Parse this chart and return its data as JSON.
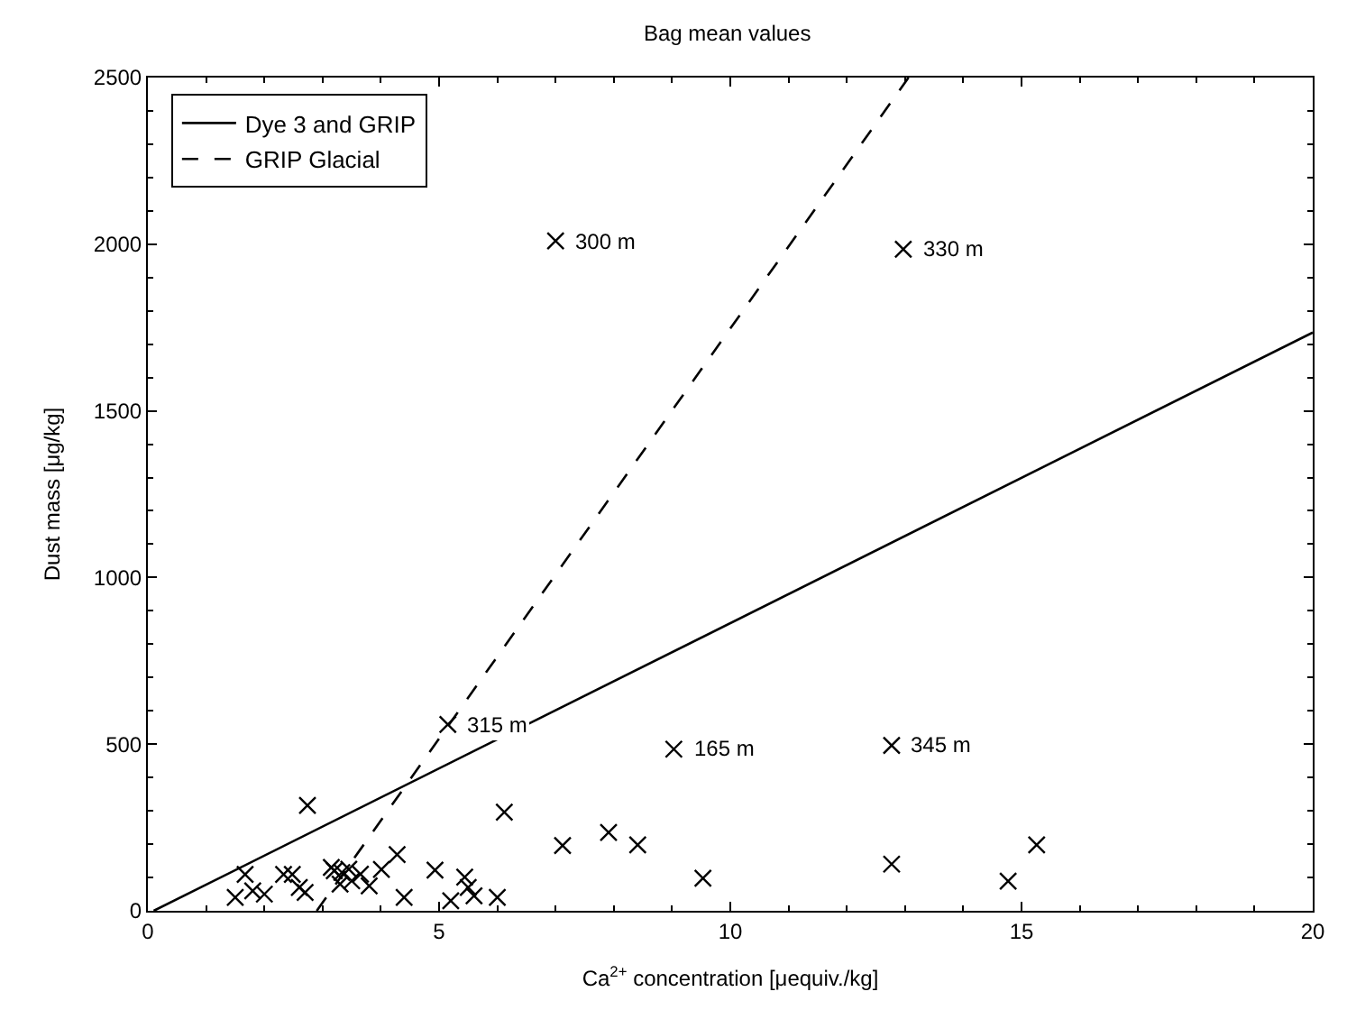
{
  "chart_data": {
    "type": "scatter",
    "title": "Bag mean values",
    "xlabel": "Ca$^{2+}$ concentration [μequiv./kg]",
    "ylabel": "Dust mass [μg/kg]",
    "xlim": [
      0,
      20
    ],
    "xticks": [
      0,
      5,
      10,
      15,
      20
    ],
    "ylim": [
      0,
      2500
    ],
    "yticks": [
      0,
      500,
      1000,
      1500,
      2000,
      2500
    ],
    "legend": "top left",
    "series": [
      {
        "color": "#000000",
        "marker": "cross",
        "x": [
          7.0,
          12.97,
          5.15,
          9.03,
          12.77,
          2.74,
          6.12,
          7.12,
          4.28,
          4.01,
          4.93,
          5.44,
          1.67,
          2.33,
          2.48,
          3.15,
          3.2,
          3.33,
          3.45,
          3.65,
          7.91,
          8.41,
          9.53,
          12.77,
          14.77,
          15.26,
          1.5,
          1.8,
          2.0,
          2.6,
          2.7,
          3.3,
          3.5,
          3.8,
          4.4,
          5.2,
          5.5,
          5.6,
          6.0
        ],
        "values": [
          2010,
          1985,
          559,
          485,
          496,
          316,
          296,
          196,
          169,
          124,
          122,
          101,
          109,
          109,
          109,
          130,
          120,
          115,
          125,
          110,
          235,
          198,
          98,
          140,
          89,
          198,
          40,
          60,
          50,
          70,
          55,
          80,
          90,
          75,
          40,
          30,
          70,
          45,
          40
        ]
      },
      {
        "type": "line",
        "name": "Dye 3 and GRIP",
        "color": "#000000",
        "line_style": "solid",
        "marker": "none",
        "x": [
          0.1,
          20
        ],
        "values": [
          0,
          1735
        ]
      },
      {
        "type": "line",
        "name": "GRIP Glacial",
        "color": "#000000",
        "line_style": "dashed",
        "marker": "none",
        "x": [
          2.9,
          13.06
        ],
        "values": [
          0,
          2500
        ]
      }
    ],
    "annotations": [
      {
        "text": "300 m",
        "x": 7.0,
        "y": 2010
      },
      {
        "text": "330 m",
        "x": 12.97,
        "y": 1985
      },
      {
        "text": "315 m",
        "x": 5.15,
        "y": 559
      },
      {
        "text": "165 m",
        "x": 9.03,
        "y": 485
      },
      {
        "text": "345 m",
        "x": 12.77,
        "y": 496
      }
    ]
  }
}
